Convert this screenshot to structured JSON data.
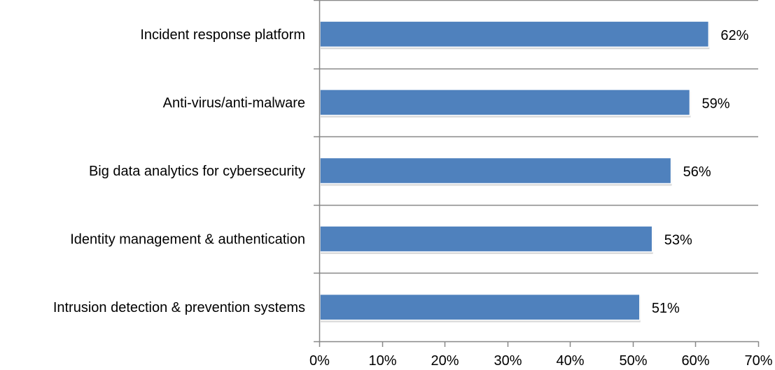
{
  "chart_data": {
    "type": "bar",
    "orientation": "horizontal",
    "categories": [
      "Incident response platform",
      "Anti-virus/anti-malware",
      "Big data analytics for cybersecurity",
      "Identity management & authentication",
      "Intrusion detection & prevention systems"
    ],
    "values": [
      62,
      59,
      56,
      53,
      51
    ],
    "data_labels": [
      "62%",
      "59%",
      "56%",
      "53%",
      "51%"
    ],
    "title": "",
    "xlabel": "",
    "ylabel": "",
    "xlim": [
      0,
      70
    ],
    "x_ticks": [
      0,
      10,
      20,
      30,
      40,
      50,
      60,
      70
    ],
    "x_tick_labels": [
      "0%",
      "10%",
      "20%",
      "30%",
      "40%",
      "50%",
      "60%",
      "70%"
    ],
    "grid": "horizontal category separators",
    "legend": "none",
    "colors": {
      "bar": "#4F81BD",
      "bar_edge": "#ffffff",
      "axis": "#888888",
      "text": "#000000"
    }
  }
}
